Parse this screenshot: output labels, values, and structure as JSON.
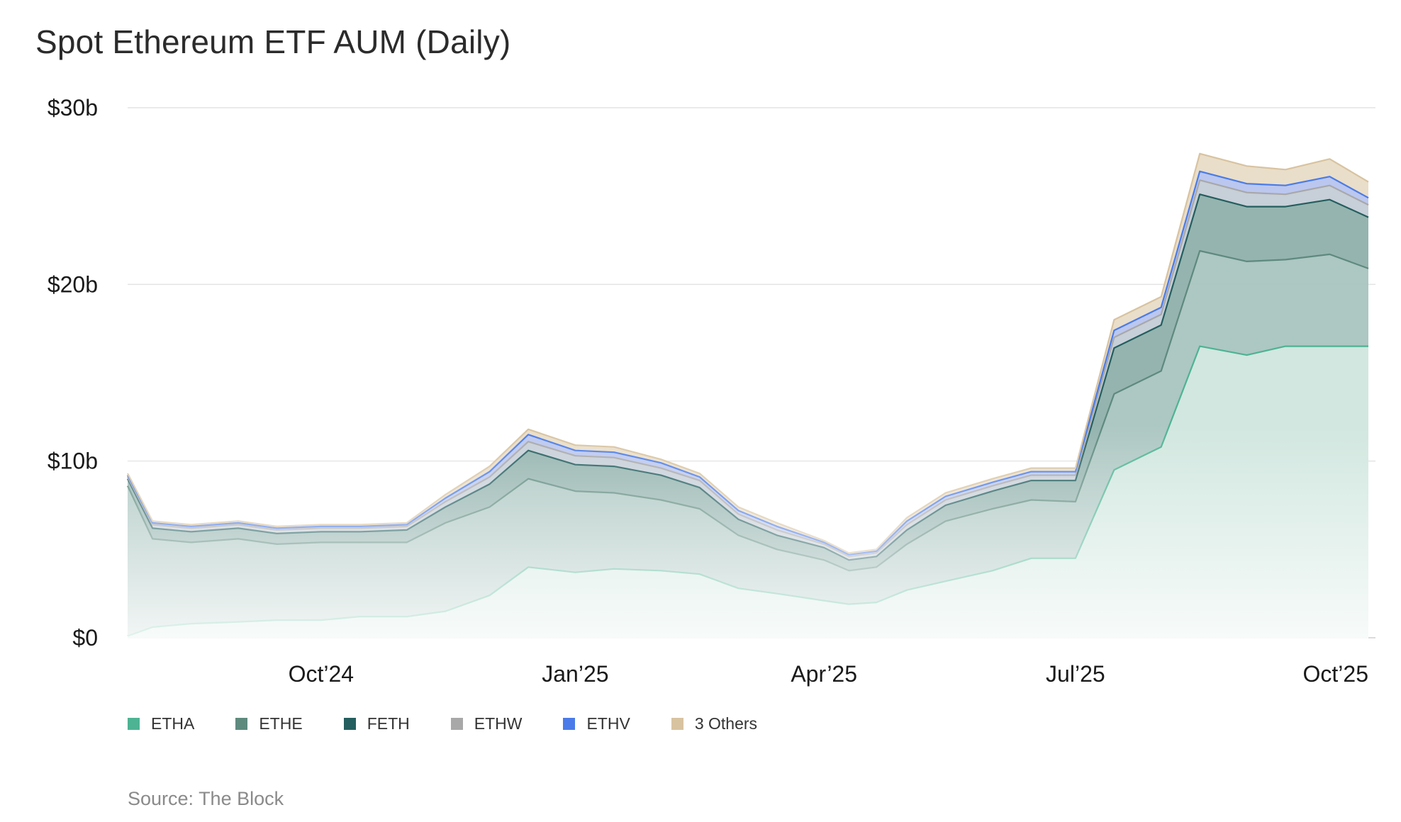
{
  "title": "Spot Ethereum ETF AUM (Daily)",
  "source": "Source: The Block",
  "chart_data": {
    "type": "area",
    "stacked": true,
    "title": "Spot Ethereum ETF AUM (Daily)",
    "xlabel": "",
    "ylabel": "",
    "ylim": [
      0,
      30
    ],
    "y_unit": "billion USD",
    "y_ticks": [
      {
        "value": 0,
        "label": "$0"
      },
      {
        "value": 10,
        "label": "$10b"
      },
      {
        "value": 20,
        "label": "$20b"
      },
      {
        "value": 30,
        "label": "$30b"
      }
    ],
    "x_ticks": [
      "Oct’24",
      "Jan’25",
      "Apr’25",
      "Jul’25",
      "Oct’25"
    ],
    "x_tick_dates": [
      "2024-10-01",
      "2025-01-01",
      "2025-04-01",
      "2025-07-01",
      "2025-10-01"
    ],
    "grid": true,
    "legend_position": "bottom-left",
    "x": [
      "2024-07-23",
      "2024-08-01",
      "2024-08-15",
      "2024-09-01",
      "2024-09-15",
      "2024-10-01",
      "2024-10-15",
      "2024-11-01",
      "2024-11-15",
      "2024-12-01",
      "2024-12-15",
      "2025-01-01",
      "2025-01-15",
      "2025-02-01",
      "2025-02-15",
      "2025-03-01",
      "2025-03-15",
      "2025-04-01",
      "2025-04-10",
      "2025-04-20",
      "2025-05-01",
      "2025-05-15",
      "2025-06-01",
      "2025-06-15",
      "2025-07-01",
      "2025-07-15",
      "2025-08-01",
      "2025-08-15",
      "2025-09-01",
      "2025-09-15",
      "2025-10-01",
      "2025-10-15"
    ],
    "series": [
      {
        "name": "ETHA",
        "color": "#4db393",
        "values": [
          0.1,
          0.6,
          0.8,
          0.9,
          1.0,
          1.0,
          1.2,
          1.2,
          1.5,
          2.4,
          4.0,
          3.7,
          3.9,
          3.8,
          3.6,
          2.8,
          2.5,
          2.1,
          1.9,
          2.0,
          2.7,
          3.2,
          3.8,
          4.5,
          4.5,
          9.5,
          10.8,
          16.5,
          16.0,
          16.5,
          16.5,
          16.5
        ]
      },
      {
        "name": "ETHE",
        "color": "#5e8a7e",
        "values": [
          8.5,
          5.0,
          4.6,
          4.7,
          4.3,
          4.4,
          4.2,
          4.2,
          5.0,
          5.0,
          5.0,
          4.6,
          4.3,
          4.0,
          3.7,
          3.0,
          2.5,
          2.3,
          1.9,
          2.0,
          2.6,
          3.4,
          3.5,
          3.3,
          3.2,
          4.3,
          4.3,
          5.4,
          5.3,
          4.9,
          5.2,
          4.4
        ]
      },
      {
        "name": "FETH",
        "color": "#245e5e",
        "values": [
          0.4,
          0.6,
          0.6,
          0.6,
          0.6,
          0.6,
          0.6,
          0.7,
          0.9,
          1.3,
          1.6,
          1.5,
          1.5,
          1.4,
          1.2,
          0.9,
          0.8,
          0.7,
          0.6,
          0.6,
          0.8,
          0.9,
          1.0,
          1.1,
          1.2,
          2.6,
          2.6,
          3.2,
          3.1,
          3.0,
          3.1,
          2.9
        ]
      },
      {
        "name": "ETHW",
        "color": "#a8a8a8",
        "values": [
          0.1,
          0.2,
          0.2,
          0.2,
          0.2,
          0.2,
          0.2,
          0.2,
          0.3,
          0.4,
          0.5,
          0.5,
          0.5,
          0.4,
          0.4,
          0.3,
          0.3,
          0.2,
          0.2,
          0.2,
          0.3,
          0.3,
          0.3,
          0.3,
          0.3,
          0.6,
          0.6,
          0.8,
          0.8,
          0.7,
          0.8,
          0.7
        ]
      },
      {
        "name": "ETHV",
        "color": "#4a7be8",
        "values": [
          0.1,
          0.1,
          0.1,
          0.1,
          0.1,
          0.1,
          0.1,
          0.1,
          0.2,
          0.3,
          0.4,
          0.3,
          0.3,
          0.3,
          0.2,
          0.2,
          0.2,
          0.1,
          0.1,
          0.1,
          0.2,
          0.2,
          0.2,
          0.2,
          0.2,
          0.4,
          0.4,
          0.5,
          0.5,
          0.5,
          0.5,
          0.4
        ]
      },
      {
        "name": "3 Others",
        "color": "#d8c3a0",
        "values": [
          0.1,
          0.1,
          0.1,
          0.1,
          0.1,
          0.1,
          0.1,
          0.1,
          0.2,
          0.3,
          0.3,
          0.3,
          0.3,
          0.2,
          0.2,
          0.2,
          0.2,
          0.1,
          0.1,
          0.1,
          0.2,
          0.2,
          0.2,
          0.2,
          0.2,
          0.6,
          0.6,
          1.0,
          1.0,
          0.9,
          1.0,
          0.9
        ]
      }
    ]
  }
}
